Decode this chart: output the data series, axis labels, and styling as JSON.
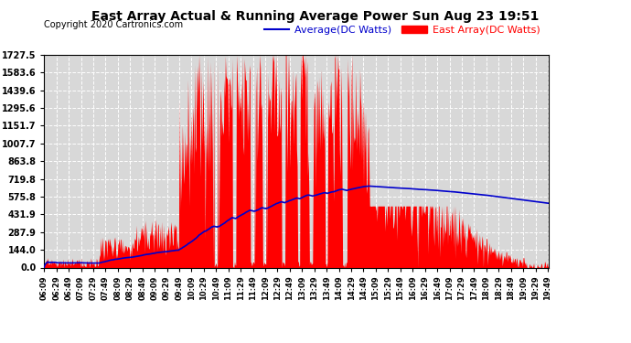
{
  "title": "East Array Actual & Running Average Power Sun Aug 23 19:51",
  "copyright": "Copyright 2020 Cartronics.com",
  "legend_avg": "Average(DC Watts)",
  "legend_east": "East Array(DC Watts)",
  "yticks": [
    0.0,
    144.0,
    287.9,
    431.9,
    575.8,
    719.8,
    863.8,
    1007.7,
    1151.7,
    1295.6,
    1439.6,
    1583.6,
    1727.5
  ],
  "ymax": 1727.5,
  "ymin": 0.0,
  "bg_color": "#ffffff",
  "plot_bg_color": "#d8d8d8",
  "grid_color": "#ffffff",
  "bar_color": "#ff0000",
  "avg_color": "#0000cc",
  "title_color": "#000000",
  "copyright_color": "#000000",
  "xtick_start_hour": 6,
  "xtick_start_min": 9,
  "xtick_interval_min": 20
}
